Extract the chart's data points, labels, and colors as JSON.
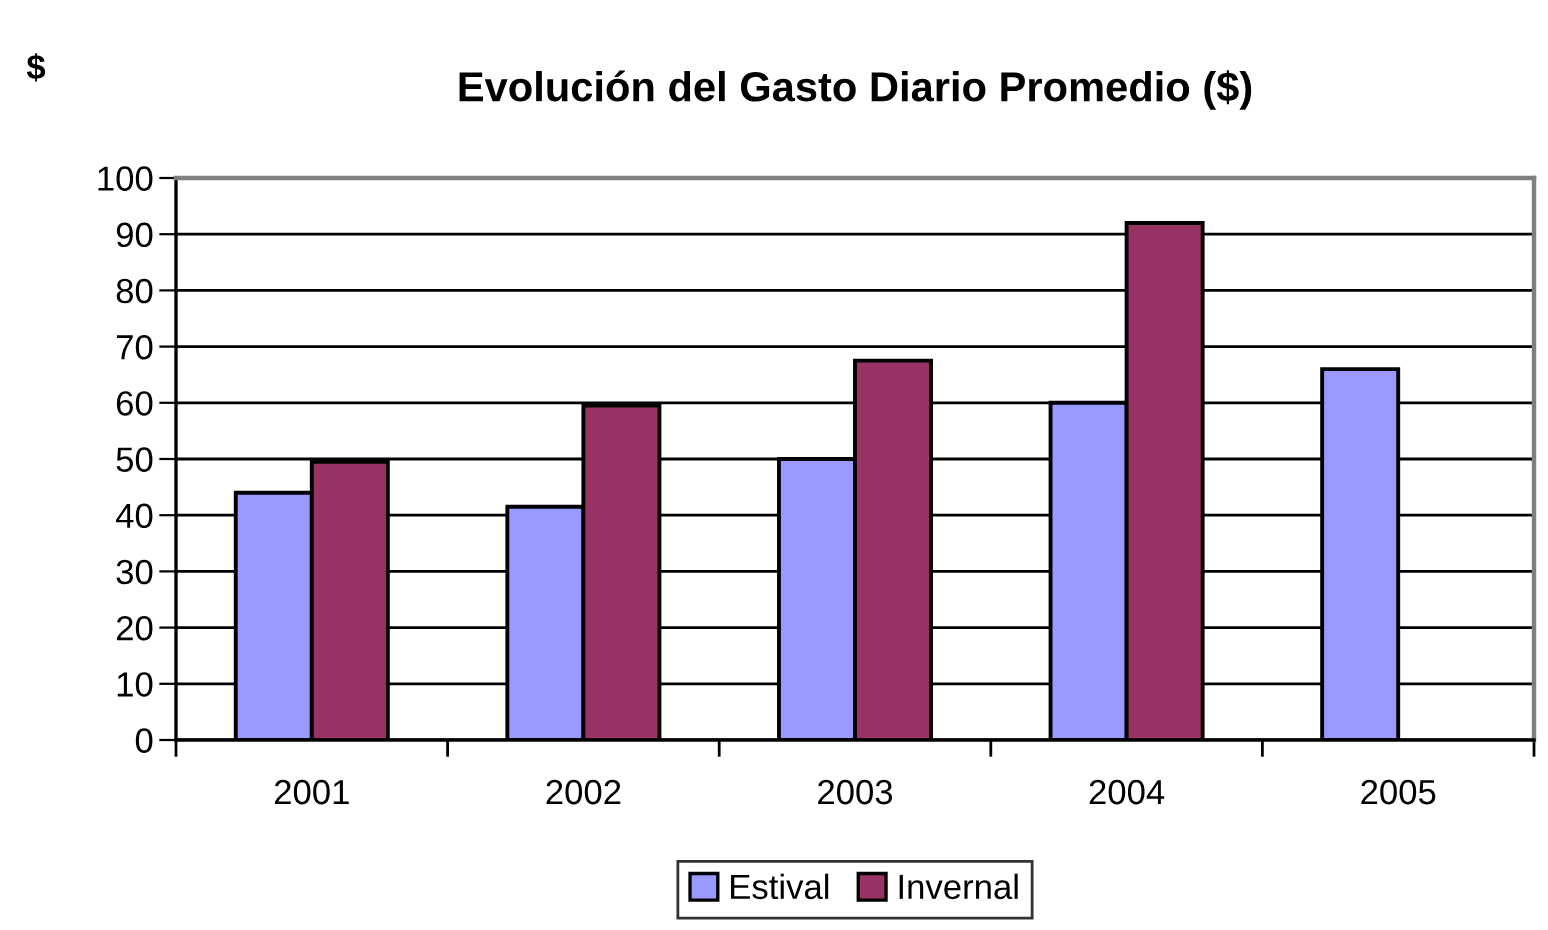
{
  "chart_data": {
    "type": "bar",
    "title": "Evolución del Gasto Diario Promedio ($)",
    "ylabel": "$",
    "categories": [
      "2001",
      "2002",
      "2003",
      "2004",
      "2005"
    ],
    "series": [
      {
        "name": "Estival",
        "color": "#9999ff",
        "values": [
          44,
          41.5,
          50,
          60,
          66
        ]
      },
      {
        "name": "Invernal",
        "color": "#993366",
        "values": [
          49.5,
          59.5,
          67.5,
          92,
          null
        ]
      }
    ],
    "ylim": [
      0,
      100
    ],
    "yticks": [
      0,
      10,
      20,
      30,
      40,
      50,
      60,
      70,
      80,
      90,
      100
    ],
    "grid": "y",
    "legend": "bottom"
  }
}
